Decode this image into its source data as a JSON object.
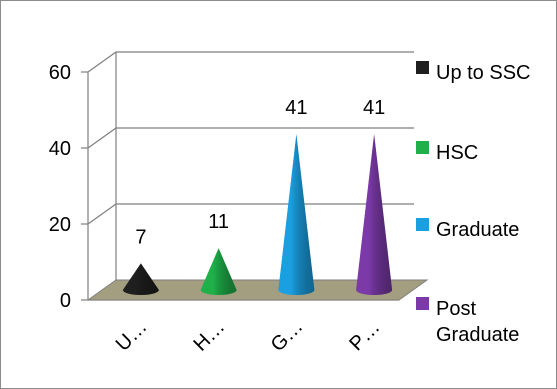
{
  "chart_data": {
    "type": "bar",
    "bar_shape": "cone",
    "categories": [
      "Up to SSC",
      "HSC",
      "Graduate",
      "Post Graduate"
    ],
    "category_tick_labels": [
      "U…",
      "H…",
      "G…",
      "P…"
    ],
    "values": [
      7,
      11,
      41,
      41
    ],
    "value_labels": [
      "7",
      "11",
      "41",
      "41"
    ],
    "colors": [
      "#1f1f1f",
      "#1fb04a",
      "#1a9fe0",
      "#7b3aa8"
    ],
    "title": "",
    "xlabel": "",
    "ylabel": "",
    "ylim": [
      0,
      60
    ],
    "yticks": [
      0,
      20,
      40,
      60
    ],
    "ytick_labels": [
      "0",
      "20",
      "40",
      "60"
    ],
    "grid": true,
    "legend": {
      "placement": "right",
      "entries": [
        {
          "label": "Up to SSC",
          "color": "#1f1f1f"
        },
        {
          "label": "HSC",
          "color": "#1fb04a"
        },
        {
          "label": "Graduate",
          "color": "#1a9fe0"
        },
        {
          "label": "Post Graduate",
          "color": "#7b3aa8"
        }
      ]
    },
    "floor_color": "#a39e7f"
  }
}
